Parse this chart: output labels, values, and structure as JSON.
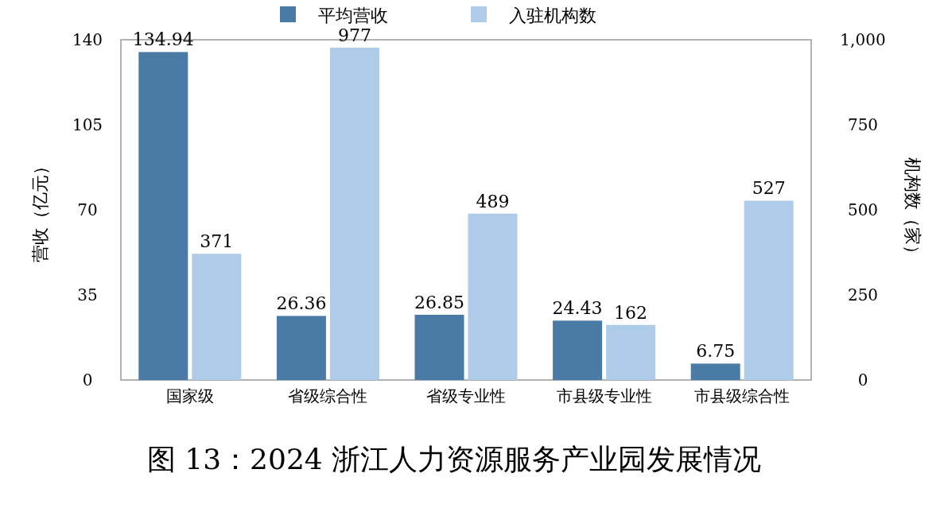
{
  "chart_data": {
    "type": "bar",
    "title": "图 13：2024 浙江人力资源服务产业园发展情况",
    "categories": [
      "国家级",
      "省级综合性",
      "省级专业性",
      "市县级专业性",
      "市县级综合性"
    ],
    "series": [
      {
        "name": "平均营收",
        "color": "#4a7ba7",
        "values": [
          134.94,
          26.36,
          26.85,
          24.43,
          6.75
        ]
      },
      {
        "name": "入驻机构数",
        "color": "#aecce8",
        "values": [
          371,
          977,
          489,
          162,
          527
        ],
        "axis": "y2"
      }
    ],
    "ylabel": "营收（亿元）",
    "y2label": "机构数（家）",
    "ylim": [
      0,
      140
    ],
    "yticks": [
      0,
      35,
      70,
      105,
      140
    ],
    "y2lim": [
      0,
      1000
    ],
    "y2ticks": [
      0,
      250,
      500,
      750,
      {
        "value": 1000,
        "label": "1,000"
      }
    ],
    "data_labels": true,
    "legend": "top",
    "grid": false
  }
}
